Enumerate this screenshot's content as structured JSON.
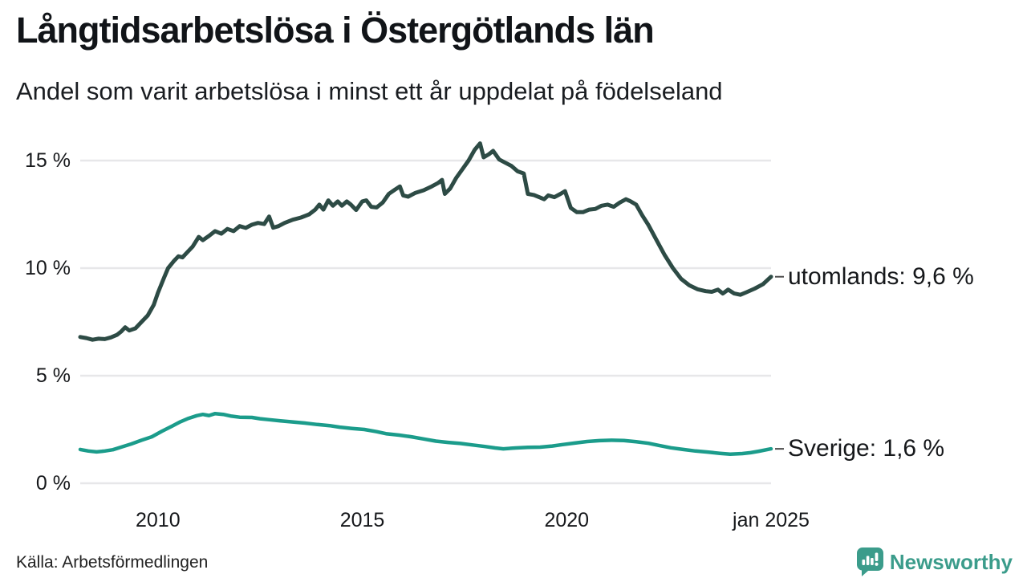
{
  "page": {
    "title": "Långtidsarbetslösa i Östergötlands län",
    "subtitle": "Andel som varit arbetslösa i minst ett år uppdelat på födelseland",
    "source": "Källa: Arbetsförmedlingen",
    "brand": {
      "name": "Newsworthy",
      "color": "#3b9c8b",
      "icon": "newsworthy-speech-bubble-bar-chart-icon"
    }
  },
  "chart_data": {
    "type": "line",
    "title": "Långtidsarbetslösa i Östergötlands län",
    "subtitle": "Andel som varit arbetslösa i minst ett år uppdelat på födelseland",
    "source": "Källa: Arbetsförmedlingen",
    "x_unit": "decimal year (monthly observations)",
    "xlim": [
      2008.1,
      2025.0
    ],
    "ylim": [
      0,
      16
    ],
    "grid": "horizontal",
    "grid_color": "#e7e7e9",
    "tick_dash_color": "#4d4d4d",
    "legend_position": "labels at right end of each line",
    "x_ticks": [
      {
        "x": 2010,
        "label": "2010"
      },
      {
        "x": 2015,
        "label": "2015"
      },
      {
        "x": 2020,
        "label": "2020"
      },
      {
        "x": 2025,
        "label": "jan 2025"
      }
    ],
    "y_ticks": [
      {
        "y": 0,
        "label": "0 %"
      },
      {
        "y": 5,
        "label": "5 %"
      },
      {
        "y": 10,
        "label": "10 %"
      },
      {
        "y": 15,
        "label": "15 %"
      }
    ],
    "series": [
      {
        "name": "utomlands",
        "end_label": "utomlands: 9,6 %",
        "end_value_text": "9,6 %",
        "color": "#2d4b45",
        "stroke_width": 5,
        "points": [
          [
            2008.1,
            6.8
          ],
          [
            2008.25,
            6.75
          ],
          [
            2008.4,
            6.67
          ],
          [
            2008.55,
            6.72
          ],
          [
            2008.7,
            6.7
          ],
          [
            2008.85,
            6.78
          ],
          [
            2009.0,
            6.9
          ],
          [
            2009.1,
            7.05
          ],
          [
            2009.2,
            7.25
          ],
          [
            2009.3,
            7.1
          ],
          [
            2009.45,
            7.2
          ],
          [
            2009.6,
            7.5
          ],
          [
            2009.75,
            7.8
          ],
          [
            2009.9,
            8.3
          ],
          [
            2010.0,
            8.85
          ],
          [
            2010.15,
            9.55
          ],
          [
            2010.25,
            10.0
          ],
          [
            2010.4,
            10.35
          ],
          [
            2010.5,
            10.55
          ],
          [
            2010.6,
            10.5
          ],
          [
            2010.7,
            10.7
          ],
          [
            2010.85,
            11.0
          ],
          [
            2011.0,
            11.45
          ],
          [
            2011.1,
            11.3
          ],
          [
            2011.25,
            11.5
          ],
          [
            2011.4,
            11.72
          ],
          [
            2011.55,
            11.6
          ],
          [
            2011.7,
            11.82
          ],
          [
            2011.85,
            11.72
          ],
          [
            2012.0,
            11.95
          ],
          [
            2012.15,
            11.87
          ],
          [
            2012.3,
            12.02
          ],
          [
            2012.45,
            12.1
          ],
          [
            2012.6,
            12.05
          ],
          [
            2012.72,
            12.4
          ],
          [
            2012.82,
            11.88
          ],
          [
            2012.95,
            11.95
          ],
          [
            2013.1,
            12.1
          ],
          [
            2013.3,
            12.25
          ],
          [
            2013.5,
            12.35
          ],
          [
            2013.7,
            12.5
          ],
          [
            2013.85,
            12.72
          ],
          [
            2013.95,
            12.95
          ],
          [
            2014.05,
            12.72
          ],
          [
            2014.17,
            13.15
          ],
          [
            2014.28,
            12.9
          ],
          [
            2014.4,
            13.1
          ],
          [
            2014.5,
            12.9
          ],
          [
            2014.62,
            13.1
          ],
          [
            2014.72,
            12.95
          ],
          [
            2014.85,
            12.7
          ],
          [
            2015.0,
            13.1
          ],
          [
            2015.1,
            13.15
          ],
          [
            2015.22,
            12.85
          ],
          [
            2015.35,
            12.82
          ],
          [
            2015.5,
            13.05
          ],
          [
            2015.65,
            13.45
          ],
          [
            2015.8,
            13.65
          ],
          [
            2015.92,
            13.8
          ],
          [
            2016.0,
            13.38
          ],
          [
            2016.12,
            13.32
          ],
          [
            2016.3,
            13.5
          ],
          [
            2016.5,
            13.62
          ],
          [
            2016.7,
            13.8
          ],
          [
            2016.85,
            13.95
          ],
          [
            2016.95,
            14.1
          ],
          [
            2017.02,
            13.45
          ],
          [
            2017.15,
            13.7
          ],
          [
            2017.3,
            14.2
          ],
          [
            2017.45,
            14.6
          ],
          [
            2017.6,
            15.0
          ],
          [
            2017.75,
            15.5
          ],
          [
            2017.88,
            15.8
          ],
          [
            2017.97,
            15.15
          ],
          [
            2018.1,
            15.3
          ],
          [
            2018.2,
            15.45
          ],
          [
            2018.35,
            15.05
          ],
          [
            2018.5,
            14.9
          ],
          [
            2018.65,
            14.75
          ],
          [
            2018.8,
            14.5
          ],
          [
            2018.95,
            14.4
          ],
          [
            2019.05,
            13.45
          ],
          [
            2019.2,
            13.4
          ],
          [
            2019.35,
            13.28
          ],
          [
            2019.45,
            13.2
          ],
          [
            2019.55,
            13.38
          ],
          [
            2019.7,
            13.3
          ],
          [
            2019.85,
            13.45
          ],
          [
            2019.96,
            13.58
          ],
          [
            2020.1,
            12.8
          ],
          [
            2020.25,
            12.6
          ],
          [
            2020.4,
            12.6
          ],
          [
            2020.55,
            12.72
          ],
          [
            2020.7,
            12.75
          ],
          [
            2020.85,
            12.9
          ],
          [
            2021.0,
            12.95
          ],
          [
            2021.15,
            12.85
          ],
          [
            2021.3,
            13.05
          ],
          [
            2021.45,
            13.2
          ],
          [
            2021.55,
            13.12
          ],
          [
            2021.7,
            12.95
          ],
          [
            2021.85,
            12.45
          ],
          [
            2022.0,
            12.0
          ],
          [
            2022.2,
            11.3
          ],
          [
            2022.4,
            10.6
          ],
          [
            2022.6,
            10.0
          ],
          [
            2022.8,
            9.5
          ],
          [
            2023.0,
            9.2
          ],
          [
            2023.2,
            9.02
          ],
          [
            2023.4,
            8.93
          ],
          [
            2023.55,
            8.9
          ],
          [
            2023.7,
            9.0
          ],
          [
            2023.82,
            8.82
          ],
          [
            2023.95,
            9.0
          ],
          [
            2024.1,
            8.82
          ],
          [
            2024.25,
            8.76
          ],
          [
            2024.4,
            8.88
          ],
          [
            2024.6,
            9.05
          ],
          [
            2024.8,
            9.25
          ],
          [
            2025.0,
            9.6
          ]
        ]
      },
      {
        "name": "Sverige",
        "end_label": "Sverige: 1,6 %",
        "end_value_text": "1,6 %",
        "color": "#1b9c8b",
        "stroke_width": 4.5,
        "points": [
          [
            2008.1,
            1.57
          ],
          [
            2008.3,
            1.5
          ],
          [
            2008.5,
            1.46
          ],
          [
            2008.7,
            1.5
          ],
          [
            2008.9,
            1.56
          ],
          [
            2009.1,
            1.68
          ],
          [
            2009.35,
            1.83
          ],
          [
            2009.6,
            2.0
          ],
          [
            2009.85,
            2.16
          ],
          [
            2010.1,
            2.42
          ],
          [
            2010.35,
            2.66
          ],
          [
            2010.55,
            2.86
          ],
          [
            2010.75,
            3.02
          ],
          [
            2010.95,
            3.14
          ],
          [
            2011.1,
            3.2
          ],
          [
            2011.25,
            3.15
          ],
          [
            2011.4,
            3.24
          ],
          [
            2011.6,
            3.2
          ],
          [
            2011.8,
            3.12
          ],
          [
            2012.0,
            3.07
          ],
          [
            2012.3,
            3.06
          ],
          [
            2012.5,
            3.0
          ],
          [
            2012.7,
            2.96
          ],
          [
            2013.0,
            2.9
          ],
          [
            2013.3,
            2.85
          ],
          [
            2013.6,
            2.8
          ],
          [
            2013.9,
            2.73
          ],
          [
            2014.2,
            2.68
          ],
          [
            2014.45,
            2.61
          ],
          [
            2014.75,
            2.55
          ],
          [
            2015.05,
            2.5
          ],
          [
            2015.35,
            2.4
          ],
          [
            2015.6,
            2.3
          ],
          [
            2015.9,
            2.24
          ],
          [
            2016.2,
            2.16
          ],
          [
            2016.5,
            2.06
          ],
          [
            2016.8,
            1.96
          ],
          [
            2017.1,
            1.9
          ],
          [
            2017.4,
            1.85
          ],
          [
            2017.7,
            1.78
          ],
          [
            2018.0,
            1.71
          ],
          [
            2018.25,
            1.64
          ],
          [
            2018.45,
            1.6
          ],
          [
            2018.75,
            1.64
          ],
          [
            2019.05,
            1.67
          ],
          [
            2019.35,
            1.68
          ],
          [
            2019.65,
            1.73
          ],
          [
            2019.9,
            1.8
          ],
          [
            2020.2,
            1.87
          ],
          [
            2020.5,
            1.94
          ],
          [
            2020.8,
            1.98
          ],
          [
            2021.1,
            2.0
          ],
          [
            2021.4,
            1.99
          ],
          [
            2021.7,
            1.93
          ],
          [
            2022.0,
            1.86
          ],
          [
            2022.25,
            1.76
          ],
          [
            2022.55,
            1.65
          ],
          [
            2022.85,
            1.57
          ],
          [
            2023.15,
            1.5
          ],
          [
            2023.45,
            1.45
          ],
          [
            2023.75,
            1.39
          ],
          [
            2024.0,
            1.35
          ],
          [
            2024.3,
            1.38
          ],
          [
            2024.5,
            1.42
          ],
          [
            2024.7,
            1.49
          ],
          [
            2025.0,
            1.6
          ]
        ]
      }
    ]
  }
}
